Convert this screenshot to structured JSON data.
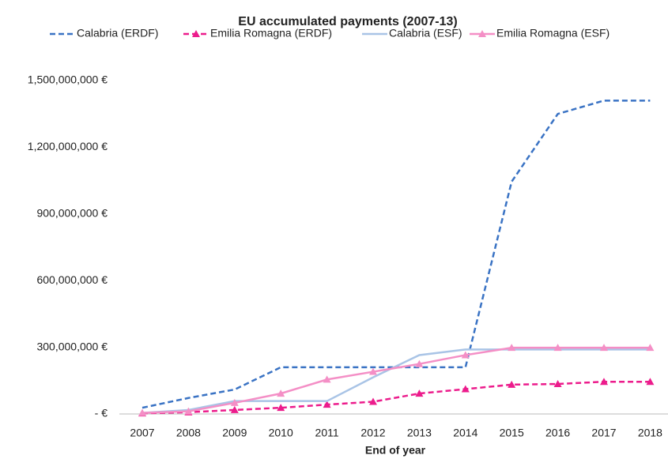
{
  "chart_data": {
    "type": "line",
    "title": "EU accumulated payments (2007-13)",
    "xlabel": "End of year",
    "categories": [
      "2007",
      "2008",
      "2009",
      "2010",
      "2011",
      "2012",
      "2013",
      "2014",
      "2015",
      "2016",
      "2017",
      "2018"
    ],
    "ylim": [
      0,
      1500000000
    ],
    "yticks": [
      {
        "value": 0,
        "label": "-   €"
      },
      {
        "value": 300000000,
        "label": "300,000,000 €"
      },
      {
        "value": 600000000,
        "label": "600,000,000 €"
      },
      {
        "value": 900000000,
        "label": "900,000,000 €"
      },
      {
        "value": 1200000000,
        "label": "1,200,000,000 €"
      },
      {
        "value": 1500000000,
        "label": "1,500,000,000 €"
      }
    ],
    "grid": false,
    "legend": "top",
    "series": [
      {
        "name": "Calabria (ERDF)",
        "color": "#3a73c4",
        "dash": true,
        "marker": "none",
        "values": [
          28000000,
          72000000,
          110000000,
          210000000,
          210000000,
          210000000,
          210000000,
          210000000,
          1045000000,
          1350000000,
          1410000000,
          1410000000
        ]
      },
      {
        "name": "Emilia Romagna (ERDF)",
        "color": "#ec1c8c",
        "dash": true,
        "marker": "triangle",
        "values": [
          3000000,
          8000000,
          18000000,
          28000000,
          42000000,
          55000000,
          92000000,
          112000000,
          132000000,
          135000000,
          145000000,
          145000000
        ]
      },
      {
        "name": "Calabria (ESF)",
        "color": "#a9c4e6",
        "dash": false,
        "marker": "none",
        "values": [
          5000000,
          18000000,
          58000000,
          58000000,
          58000000,
          165000000,
          265000000,
          290000000,
          290000000,
          290000000,
          290000000,
          290000000
        ]
      },
      {
        "name": "Emilia Romagna (ESF)",
        "color": "#f48fc6",
        "dash": false,
        "marker": "triangle",
        "values": [
          5000000,
          12000000,
          50000000,
          92000000,
          155000000,
          190000000,
          225000000,
          265000000,
          298000000,
          298000000,
          298000000,
          298000000
        ]
      }
    ]
  }
}
